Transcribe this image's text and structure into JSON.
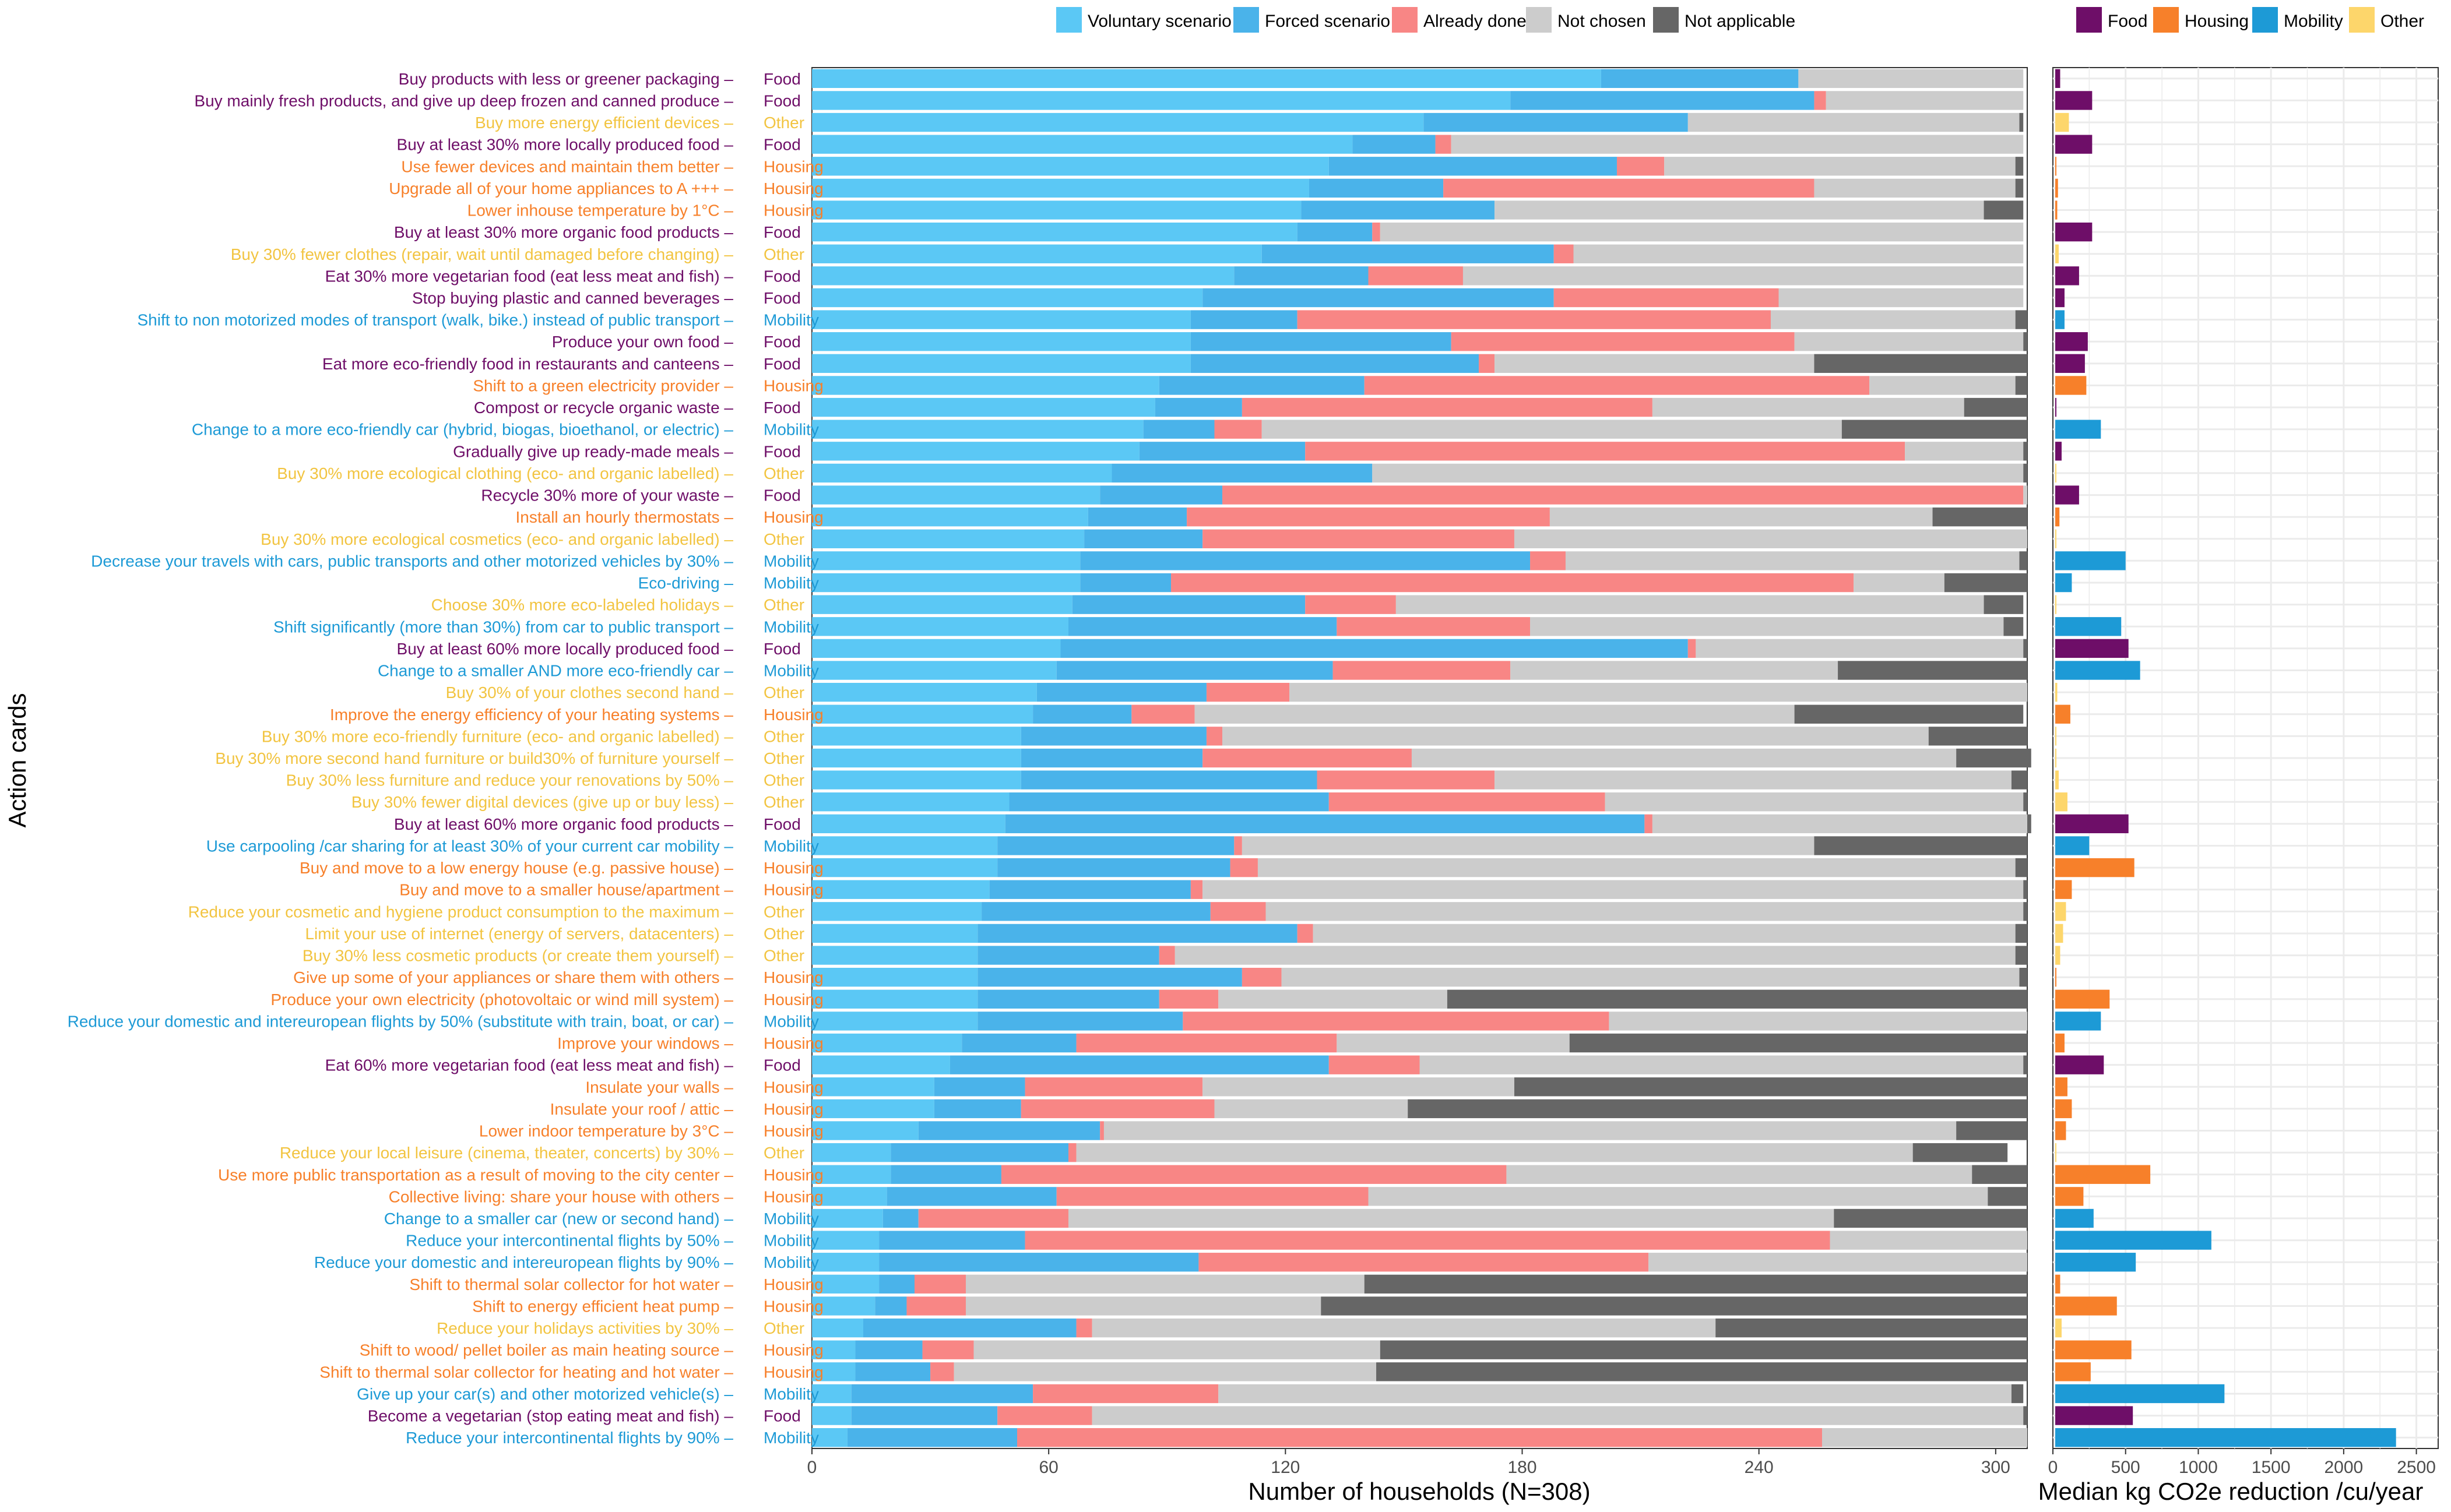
{
  "chart_data": [
    {
      "type": "bar",
      "stacked": true,
      "orientation": "horizontal",
      "xlabel": "Number of households (N=308)",
      "ylabel": "Action cards",
      "xlim": [
        0,
        308
      ],
      "xticks": [
        0,
        60,
        120,
        180,
        240,
        300
      ],
      "legend_position": "top",
      "series_names": [
        "Voluntary scenario",
        "Forced scenario",
        "Already done",
        "Not chosen",
        "Not applicable"
      ],
      "series_colors": [
        "#5bc8f5",
        "#4ab3ea",
        "#f88685",
        "#cccccc",
        "#666666"
      ],
      "categories": [
        {
          "label": "Buy products with less or greener packaging",
          "domain": "Food",
          "values": [
            200,
            50,
            0,
            57,
            0
          ]
        },
        {
          "label": "Buy mainly fresh products, and give up deep frozen and canned produce",
          "domain": "Food",
          "values": [
            177,
            77,
            3,
            50,
            0
          ]
        },
        {
          "label": "Buy more energy efficient devices",
          "domain": "Other",
          "values": [
            155,
            67,
            0,
            84,
            1
          ]
        },
        {
          "label": "Buy at least 30% more locally produced food",
          "domain": "Food",
          "values": [
            137,
            21,
            4,
            145,
            0
          ]
        },
        {
          "label": "Use fewer devices and maintain them better",
          "domain": "Housing",
          "values": [
            131,
            73,
            12,
            89,
            2
          ]
        },
        {
          "label": "Upgrade all of your home appliances to A +++",
          "domain": "Housing",
          "values": [
            126,
            34,
            94,
            51,
            2
          ]
        },
        {
          "label": "Lower inhouse temperature by 1°C",
          "domain": "Housing",
          "values": [
            124,
            49,
            0,
            124,
            10
          ]
        },
        {
          "label": "Buy at least 30% more organic food products",
          "domain": "Food",
          "values": [
            123,
            19,
            2,
            163,
            0
          ]
        },
        {
          "label": "Buy 30% fewer clothes  (repair, wait until damaged before changing)",
          "domain": "Other",
          "values": [
            114,
            74,
            5,
            114,
            0
          ]
        },
        {
          "label": "Eat 30% more vegetarian food (eat less meat and fish)",
          "domain": "Food",
          "values": [
            107,
            34,
            24,
            142,
            0
          ]
        },
        {
          "label": "Stop buying plastic and canned beverages",
          "domain": "Food",
          "values": [
            99,
            89,
            57,
            62,
            0
          ]
        },
        {
          "label": "Shift to non motorized modes of transport (walk, bike.) instead of public transport",
          "domain": "Mobility",
          "values": [
            96,
            27,
            120,
            62,
            3
          ]
        },
        {
          "label": "Produce your own food",
          "domain": "Food",
          "values": [
            96,
            66,
            87,
            58,
            1
          ]
        },
        {
          "label": "Eat more eco-friendly food in restaurants and canteens",
          "domain": "Food",
          "values": [
            96,
            73,
            4,
            81,
            54
          ]
        },
        {
          "label": "Shift to a green electricity provider",
          "domain": "Housing",
          "values": [
            88,
            52,
            128,
            37,
            3
          ]
        },
        {
          "label": "Compost or recycle organic waste",
          "domain": "Food",
          "values": [
            87,
            22,
            104,
            79,
            16
          ]
        },
        {
          "label": "Change to a more eco-friendly car (hybrid, biogas, bioethanol, or electric)",
          "domain": "Mobility",
          "values": [
            84,
            18,
            12,
            147,
            47
          ]
        },
        {
          "label": "Gradually give up ready-made meals",
          "domain": "Food",
          "values": [
            83,
            42,
            152,
            30,
            1
          ]
        },
        {
          "label": "Buy 30% more ecological clothing (eco- and organic labelled)",
          "domain": "Other",
          "values": [
            76,
            66,
            0,
            165,
            1
          ]
        },
        {
          "label": "Recycle 30% more of your waste",
          "domain": "Food",
          "values": [
            73,
            31,
            203,
            1,
            0
          ]
        },
        {
          "label": "Install an hourly thermostats",
          "domain": "Housing",
          "values": [
            70,
            25,
            92,
            97,
            24
          ]
        },
        {
          "label": "Buy 30% more ecological cosmetics (eco- and organic labelled)",
          "domain": "Other",
          "values": [
            69,
            30,
            79,
            130,
            0
          ]
        },
        {
          "label": "Decrease your travels with cars, public transports and other motorized vehicles by 30%",
          "domain": "Mobility",
          "values": [
            68,
            114,
            9,
            115,
            2
          ]
        },
        {
          "label": "Eco-driving",
          "domain": "Mobility",
          "values": [
            68,
            23,
            173,
            23,
            21
          ]
        },
        {
          "label": "Choose 30% more eco-labeled holidays",
          "domain": "Other",
          "values": [
            66,
            59,
            23,
            149,
            10
          ]
        },
        {
          "label": "Shift significantly (more than 30%) from car to public transport",
          "domain": "Mobility",
          "values": [
            65,
            68,
            49,
            120,
            5
          ]
        },
        {
          "label": "Buy at least 60% more locally produced food",
          "domain": "Food",
          "values": [
            63,
            159,
            2,
            83,
            1
          ]
        },
        {
          "label": "Change to a smaller AND more eco-friendly car",
          "domain": "Mobility",
          "values": [
            62,
            70,
            45,
            83,
            48
          ]
        },
        {
          "label": "Buy 30% of your clothes second hand",
          "domain": "Other",
          "values": [
            57,
            43,
            21,
            187,
            0
          ]
        },
        {
          "label": "Improve the energy efficiency of your heating systems",
          "domain": "Housing",
          "values": [
            56,
            25,
            16,
            152,
            58
          ]
        },
        {
          "label": "Buy 30% more eco-friendly furniture (eco- and organic labelled)",
          "domain": "Other",
          "values": [
            53,
            47,
            4,
            179,
            25
          ]
        },
        {
          "label": "Buy 30% more second hand furniture or build30% of furniture yourself",
          "domain": "Other",
          "values": [
            53,
            46,
            53,
            138,
            19
          ]
        },
        {
          "label": "Buy 30% less furniture and reduce your renovations by 50%",
          "domain": "Other",
          "values": [
            53,
            75,
            45,
            131,
            4
          ]
        },
        {
          "label": "Buy 30% fewer digital devices (give up or buy less)",
          "domain": "Other",
          "values": [
            50,
            81,
            70,
            106,
            1
          ]
        },
        {
          "label": "Buy at least 60% more organic food products",
          "domain": "Food",
          "values": [
            49,
            162,
            2,
            95,
            1
          ]
        },
        {
          "label": "Use carpooling /car sharing for at least 30% of your current  car mobility",
          "domain": "Mobility",
          "values": [
            47,
            60,
            2,
            145,
            54
          ]
        },
        {
          "label": "Buy and move to a low energy house (e.g. passive house)",
          "domain": "Housing",
          "values": [
            47,
            59,
            7,
            192,
            3
          ]
        },
        {
          "label": "Buy and move to a smaller house/apartment",
          "domain": "Housing",
          "values": [
            45,
            51,
            3,
            208,
            1
          ]
        },
        {
          "label": "Reduce your cosmetic and hygiene product consumption to the maximum",
          "domain": "Other",
          "values": [
            43,
            58,
            14,
            192,
            1
          ]
        },
        {
          "label": "Limit your use of internet (energy of servers, datacenters)",
          "domain": "Other",
          "values": [
            42,
            81,
            4,
            178,
            3
          ]
        },
        {
          "label": "Buy 30% less cosmetic products (or create them yourself)",
          "domain": "Other",
          "values": [
            42,
            46,
            4,
            213,
            3
          ]
        },
        {
          "label": "Give up some of your appliances or share them with others",
          "domain": "Housing",
          "values": [
            42,
            67,
            10,
            187,
            2
          ]
        },
        {
          "label": "Produce your own electricity (photovoltaic or wind mill system)",
          "domain": "Housing",
          "values": [
            42,
            46,
            15,
            58,
            147
          ]
        },
        {
          "label": "Reduce your domestic and intereuropean flights by 50% (substitute with train, boat, or car)",
          "domain": "Mobility",
          "values": [
            42,
            52,
            108,
            106,
            0
          ]
        },
        {
          "label": "Improve your windows",
          "domain": "Housing",
          "values": [
            38,
            29,
            66,
            59,
            116
          ]
        },
        {
          "label": "Eat 60% more vegetarian food (eat less meat and fish)",
          "domain": "Food",
          "values": [
            35,
            96,
            23,
            153,
            1
          ]
        },
        {
          "label": "Insulate your walls",
          "domain": "Housing",
          "values": [
            31,
            23,
            45,
            79,
            130
          ]
        },
        {
          "label": "Insulate your roof / attic",
          "domain": "Housing",
          "values": [
            31,
            22,
            49,
            49,
            157
          ]
        },
        {
          "label": "Lower indoor temperature by 3°C",
          "domain": "Housing",
          "values": [
            27,
            46,
            1,
            216,
            18
          ]
        },
        {
          "label": "Reduce your local leisure (cinema, theater, concerts) by 30%",
          "domain": "Other",
          "values": [
            20,
            45,
            2,
            212,
            24
          ]
        },
        {
          "label": "Use more public transportation as a result of moving to the city center",
          "domain": "Housing",
          "values": [
            20,
            28,
            128,
            118,
            14
          ]
        },
        {
          "label": "Collective living: share your house with others",
          "domain": "Housing",
          "values": [
            19,
            43,
            79,
            157,
            10
          ]
        },
        {
          "label": "Change to a smaller car (new or second hand)",
          "domain": "Mobility",
          "values": [
            18,
            9,
            38,
            194,
            49
          ]
        },
        {
          "label": "Reduce your intercontinental flights by 50%",
          "domain": "Mobility",
          "values": [
            17,
            37,
            204,
            50,
            0
          ]
        },
        {
          "label": "Reduce your domestic and intereuropean flights by 90%",
          "domain": "Mobility",
          "values": [
            17,
            81,
            114,
            96,
            0
          ]
        },
        {
          "label": "Shift to thermal solar collector for hot water",
          "domain": "Housing",
          "values": [
            17,
            9,
            13,
            101,
            168
          ]
        },
        {
          "label": "Shift to energy efficient heat pump",
          "domain": "Housing",
          "values": [
            16,
            8,
            15,
            90,
            179
          ]
        },
        {
          "label": "Reduce your holidays activities by 30%",
          "domain": "Other",
          "values": [
            13,
            54,
            4,
            158,
            79
          ]
        },
        {
          "label": "Shift to wood/ pellet boiler as main heating source",
          "domain": "Housing",
          "values": [
            11,
            17,
            13,
            103,
            164
          ]
        },
        {
          "label": "Shift to thermal solar collector for heating and hot water",
          "domain": "Housing",
          "values": [
            11,
            19,
            6,
            107,
            165
          ]
        },
        {
          "label": "Give up your car(s) and other motorized vehicle(s)",
          "domain": "Mobility",
          "values": [
            10,
            46,
            47,
            201,
            3
          ]
        },
        {
          "label": "Become a vegetarian (stop eating meat and fish)",
          "domain": "Food",
          "values": [
            10,
            37,
            24,
            236,
            1
          ]
        },
        {
          "label": "Reduce your intercontinental flights by 90%",
          "domain": "Mobility",
          "values": [
            9,
            43,
            204,
            52,
            0
          ]
        }
      ]
    },
    {
      "type": "bar",
      "orientation": "horizontal",
      "xlabel": "Median kg CO2e reduction /cu/year",
      "xlim": [
        0,
        2650
      ],
      "xticks": [
        0,
        500,
        1000,
        1500,
        2000,
        2500
      ],
      "legend_position": "top",
      "legend": [
        "Food",
        "Housing",
        "Mobility",
        "Other"
      ],
      "domain_colors": {
        "Food": "#6e0e68",
        "Housing": "#f7802a",
        "Mobility": "#1d9ad6",
        "Other": "#fdd66b"
      },
      "values": [
        50,
        270,
        110,
        270,
        20,
        35,
        30,
        270,
        40,
        180,
        80,
        80,
        240,
        220,
        230,
        15,
        330,
        60,
        10,
        180,
        45,
        5,
        500,
        130,
        20,
        470,
        520,
        600,
        30,
        120,
        8,
        12,
        40,
        100,
        520,
        250,
        560,
        130,
        90,
        70,
        50,
        20,
        390,
        330,
        80,
        350,
        100,
        130,
        90,
        5,
        670,
        210,
        280,
        1090,
        570,
        50,
        440,
        60,
        540,
        260,
        1180,
        550,
        2360
      ]
    }
  ]
}
